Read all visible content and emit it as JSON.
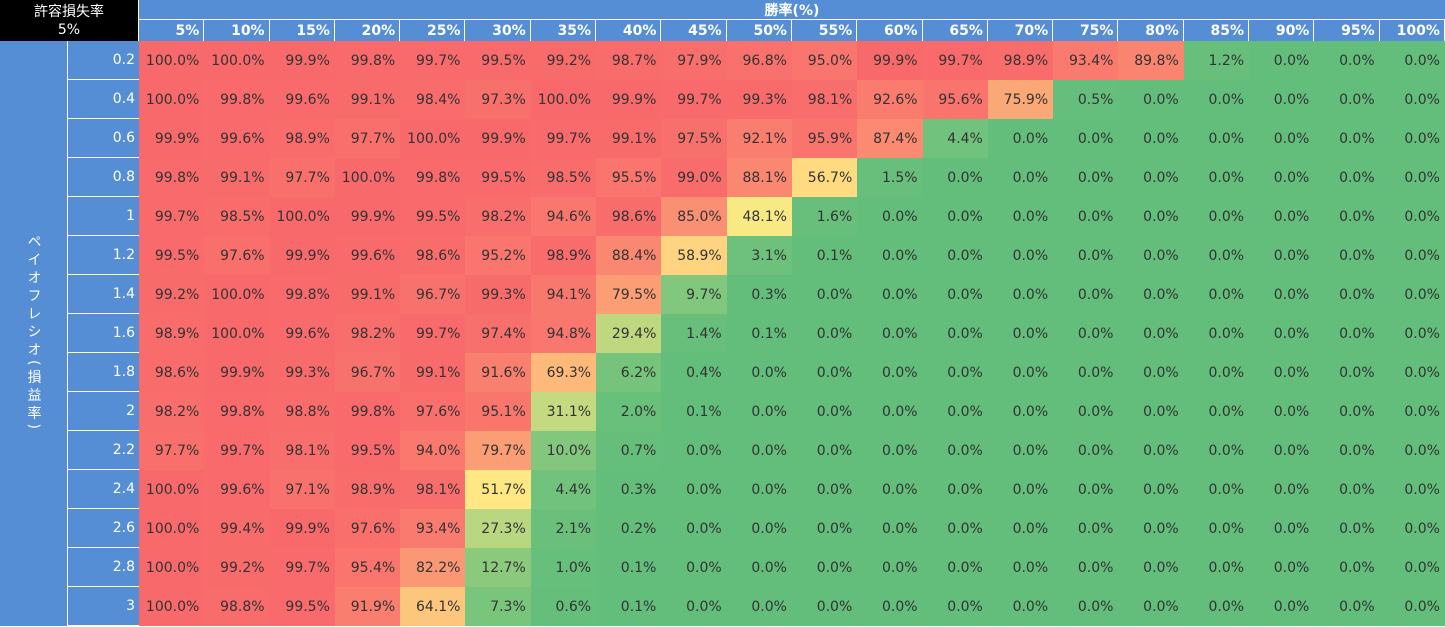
{
  "corner": {
    "title": "許容損失率",
    "value": "5%"
  },
  "chart_data": {
    "type": "heatmap",
    "title": "",
    "xlabel": "勝率(%)",
    "ylabel": "ペイオフレシオ(損益率)",
    "columns": [
      "5%",
      "10%",
      "15%",
      "20%",
      "25%",
      "30%",
      "35%",
      "40%",
      "45%",
      "50%",
      "55%",
      "60%",
      "65%",
      "70%",
      "75%",
      "80%",
      "85%",
      "90%",
      "95%",
      "100%"
    ],
    "rows": [
      "0.2",
      "0.4",
      "0.6",
      "0.8",
      "1",
      "1.2",
      "1.4",
      "1.6",
      "1.8",
      "2",
      "2.2",
      "2.4",
      "2.6",
      "2.8",
      "3"
    ],
    "unit": "%",
    "values": [
      [
        100.0,
        100.0,
        99.9,
        99.8,
        99.7,
        99.5,
        99.2,
        98.7,
        97.9,
        96.8,
        95.0,
        99.9,
        99.7,
        98.9,
        93.4,
        89.8,
        1.2,
        0.0,
        0.0,
        0.0
      ],
      [
        100.0,
        99.8,
        99.6,
        99.1,
        98.4,
        97.3,
        100.0,
        99.9,
        99.7,
        99.3,
        98.1,
        92.6,
        95.6,
        75.9,
        0.5,
        0.0,
        0.0,
        0.0,
        0.0,
        0.0
      ],
      [
        99.9,
        99.6,
        98.9,
        97.7,
        100.0,
        99.9,
        99.7,
        99.1,
        97.5,
        92.1,
        95.9,
        87.4,
        4.4,
        0.0,
        0.0,
        0.0,
        0.0,
        0.0,
        0.0,
        0.0
      ],
      [
        99.8,
        99.1,
        97.7,
        100.0,
        99.8,
        99.5,
        98.5,
        95.5,
        99.0,
        88.1,
        56.7,
        1.5,
        0.0,
        0.0,
        0.0,
        0.0,
        0.0,
        0.0,
        0.0,
        0.0
      ],
      [
        99.7,
        98.5,
        100.0,
        99.9,
        99.5,
        98.2,
        94.6,
        98.6,
        85.0,
        48.1,
        1.6,
        0.0,
        0.0,
        0.0,
        0.0,
        0.0,
        0.0,
        0.0,
        0.0,
        0.0
      ],
      [
        99.5,
        97.6,
        99.9,
        99.6,
        98.6,
        95.2,
        98.9,
        88.4,
        58.9,
        3.1,
        0.1,
        0.0,
        0.0,
        0.0,
        0.0,
        0.0,
        0.0,
        0.0,
        0.0,
        0.0
      ],
      [
        99.2,
        100.0,
        99.8,
        99.1,
        96.7,
        99.3,
        94.1,
        79.5,
        9.7,
        0.3,
        0.0,
        0.0,
        0.0,
        0.0,
        0.0,
        0.0,
        0.0,
        0.0,
        0.0,
        0.0
      ],
      [
        98.9,
        100.0,
        99.6,
        98.2,
        99.7,
        97.4,
        94.8,
        29.4,
        1.4,
        0.1,
        0.0,
        0.0,
        0.0,
        0.0,
        0.0,
        0.0,
        0.0,
        0.0,
        0.0,
        0.0
      ],
      [
        98.6,
        99.9,
        99.3,
        96.7,
        99.1,
        91.6,
        69.3,
        6.2,
        0.4,
        0.0,
        0.0,
        0.0,
        0.0,
        0.0,
        0.0,
        0.0,
        0.0,
        0.0,
        0.0,
        0.0
      ],
      [
        98.2,
        99.8,
        98.8,
        99.8,
        97.6,
        95.1,
        31.1,
        2.0,
        0.1,
        0.0,
        0.0,
        0.0,
        0.0,
        0.0,
        0.0,
        0.0,
        0.0,
        0.0,
        0.0,
        0.0
      ],
      [
        97.7,
        99.7,
        98.1,
        99.5,
        94.0,
        79.7,
        10.0,
        0.7,
        0.0,
        0.0,
        0.0,
        0.0,
        0.0,
        0.0,
        0.0,
        0.0,
        0.0,
        0.0,
        0.0,
        0.0
      ],
      [
        100.0,
        99.6,
        97.1,
        98.9,
        98.1,
        51.7,
        4.4,
        0.3,
        0.0,
        0.0,
        0.0,
        0.0,
        0.0,
        0.0,
        0.0,
        0.0,
        0.0,
        0.0,
        0.0,
        0.0
      ],
      [
        100.0,
        99.4,
        99.9,
        97.6,
        93.4,
        27.3,
        2.1,
        0.2,
        0.0,
        0.0,
        0.0,
        0.0,
        0.0,
        0.0,
        0.0,
        0.0,
        0.0,
        0.0,
        0.0,
        0.0
      ],
      [
        100.0,
        99.2,
        99.7,
        95.4,
        82.2,
        12.7,
        1.0,
        0.1,
        0.0,
        0.0,
        0.0,
        0.0,
        0.0,
        0.0,
        0.0,
        0.0,
        0.0,
        0.0,
        0.0,
        0.0
      ],
      [
        100.0,
        98.8,
        99.5,
        91.9,
        64.1,
        7.3,
        0.6,
        0.1,
        0.0,
        0.0,
        0.0,
        0.0,
        0.0,
        0.0,
        0.0,
        0.0,
        0.0,
        0.0,
        0.0,
        0.0
      ]
    ],
    "color_scale": {
      "low": "#63be7b",
      "mid": "#ffeb84",
      "high": "#f8696b",
      "mid_value": 50
    },
    "header_color": "#558ed5"
  }
}
